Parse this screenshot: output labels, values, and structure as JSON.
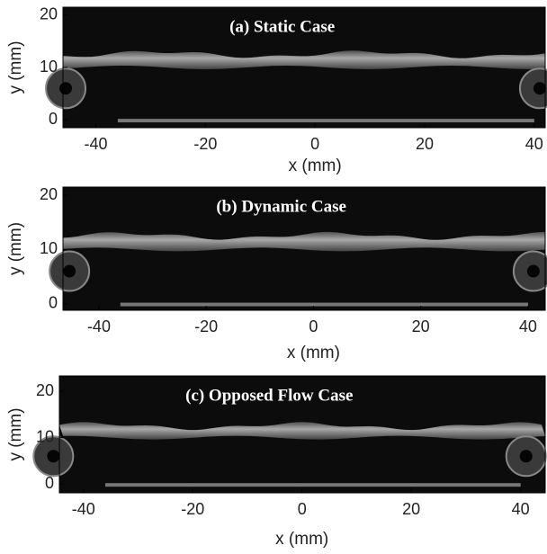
{
  "panels": [
    {
      "title": "(a) Static Case",
      "xlabel": "x (mm)",
      "ylabel": "y (mm)",
      "xlim": [
        -46,
        42
      ],
      "ylim": [
        -1.5,
        21.5
      ],
      "xticks": [
        -40,
        -20,
        0,
        20,
        40
      ],
      "yticks": [
        0,
        10,
        20
      ]
    },
    {
      "title": "(b) Dynamic Case",
      "xlabel": "x (mm)",
      "ylabel": "y (mm)",
      "xlim": [
        -46.7,
        43.2
      ],
      "ylim": [
        -1.2,
        21.5
      ],
      "xticks": [
        -40,
        -20,
        0,
        20,
        40
      ],
      "yticks": [
        0,
        10,
        20
      ]
    },
    {
      "title": "(c) Opposed Flow Case",
      "xlabel": "x (mm)",
      "ylabel": "y (mm)",
      "xlim": [
        -44.4,
        44.5
      ],
      "ylim": [
        -1.9,
        23.3
      ],
      "xticks": [
        -40,
        -20,
        0,
        20,
        40
      ],
      "yticks": [
        0,
        10,
        20
      ]
    }
  ]
}
